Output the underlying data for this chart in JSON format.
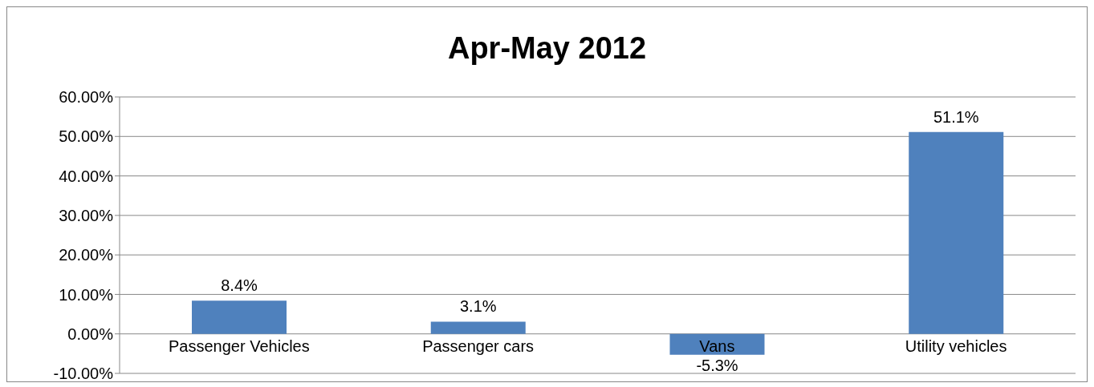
{
  "chart_data": {
    "type": "bar",
    "title": "Apr-May 2012",
    "categories": [
      "Passenger Vehicles",
      "Passenger cars",
      "Vans",
      "Utility vehicles"
    ],
    "values": [
      8.4,
      3.1,
      -5.3,
      51.1
    ],
    "color": "#4f81bd",
    "value_labels": [
      "8.4%",
      "3.1%",
      "-5.3%",
      "51.1%"
    ],
    "ylim": [
      -10,
      60
    ],
    "yticks": [
      {
        "value": -10,
        "label": "-10.00%"
      },
      {
        "value": 0,
        "label": "0.00%"
      },
      {
        "value": 10,
        "label": "10.00%"
      },
      {
        "value": 20,
        "label": "20.00%"
      },
      {
        "value": 30,
        "label": "30.00%"
      },
      {
        "value": 40,
        "label": "40.00%"
      },
      {
        "value": 50,
        "label": "50.00%"
      },
      {
        "value": 60,
        "label": "60.00%"
      }
    ],
    "grid": "y",
    "legend": false
  }
}
